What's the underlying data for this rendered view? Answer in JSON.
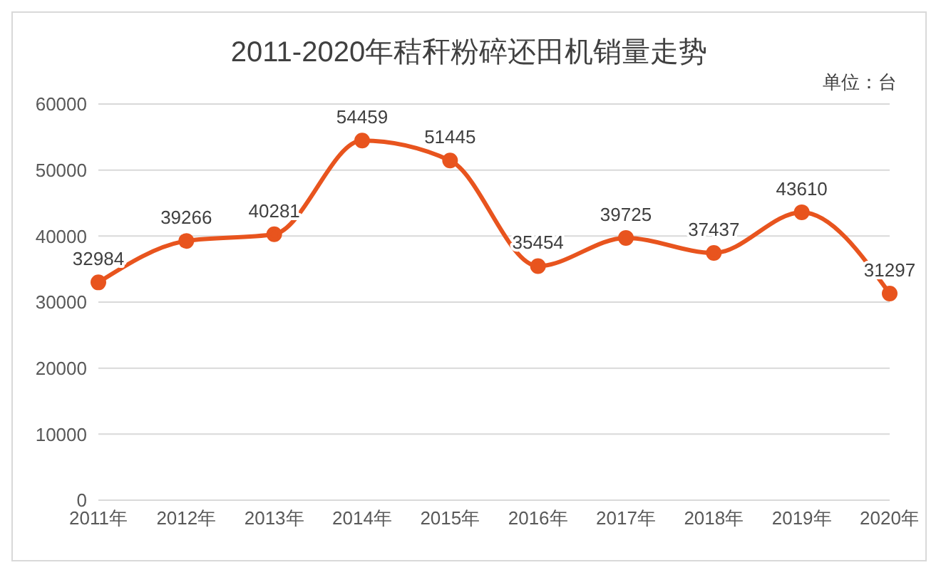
{
  "chart_data": {
    "type": "line",
    "title": "2011-2020年秸秆粉碎还田机销量走势",
    "annotations": [
      "单位：台"
    ],
    "categories": [
      "2011年",
      "2012年",
      "2013年",
      "2014年",
      "2015年",
      "2016年",
      "2017年",
      "2018年",
      "2019年",
      "2020年"
    ],
    "series": [
      {
        "color": "#e8541e",
        "values": [
          32984,
          39266,
          40281,
          54459,
          51445,
          35454,
          39725,
          37437,
          43610,
          31297
        ]
      }
    ],
    "ylim": [
      0,
      60000
    ],
    "yticks": [
      0,
      10000,
      20000,
      30000,
      40000,
      50000,
      60000
    ],
    "grid": "y",
    "data_labels": true,
    "marker": "circle",
    "legend": false
  }
}
